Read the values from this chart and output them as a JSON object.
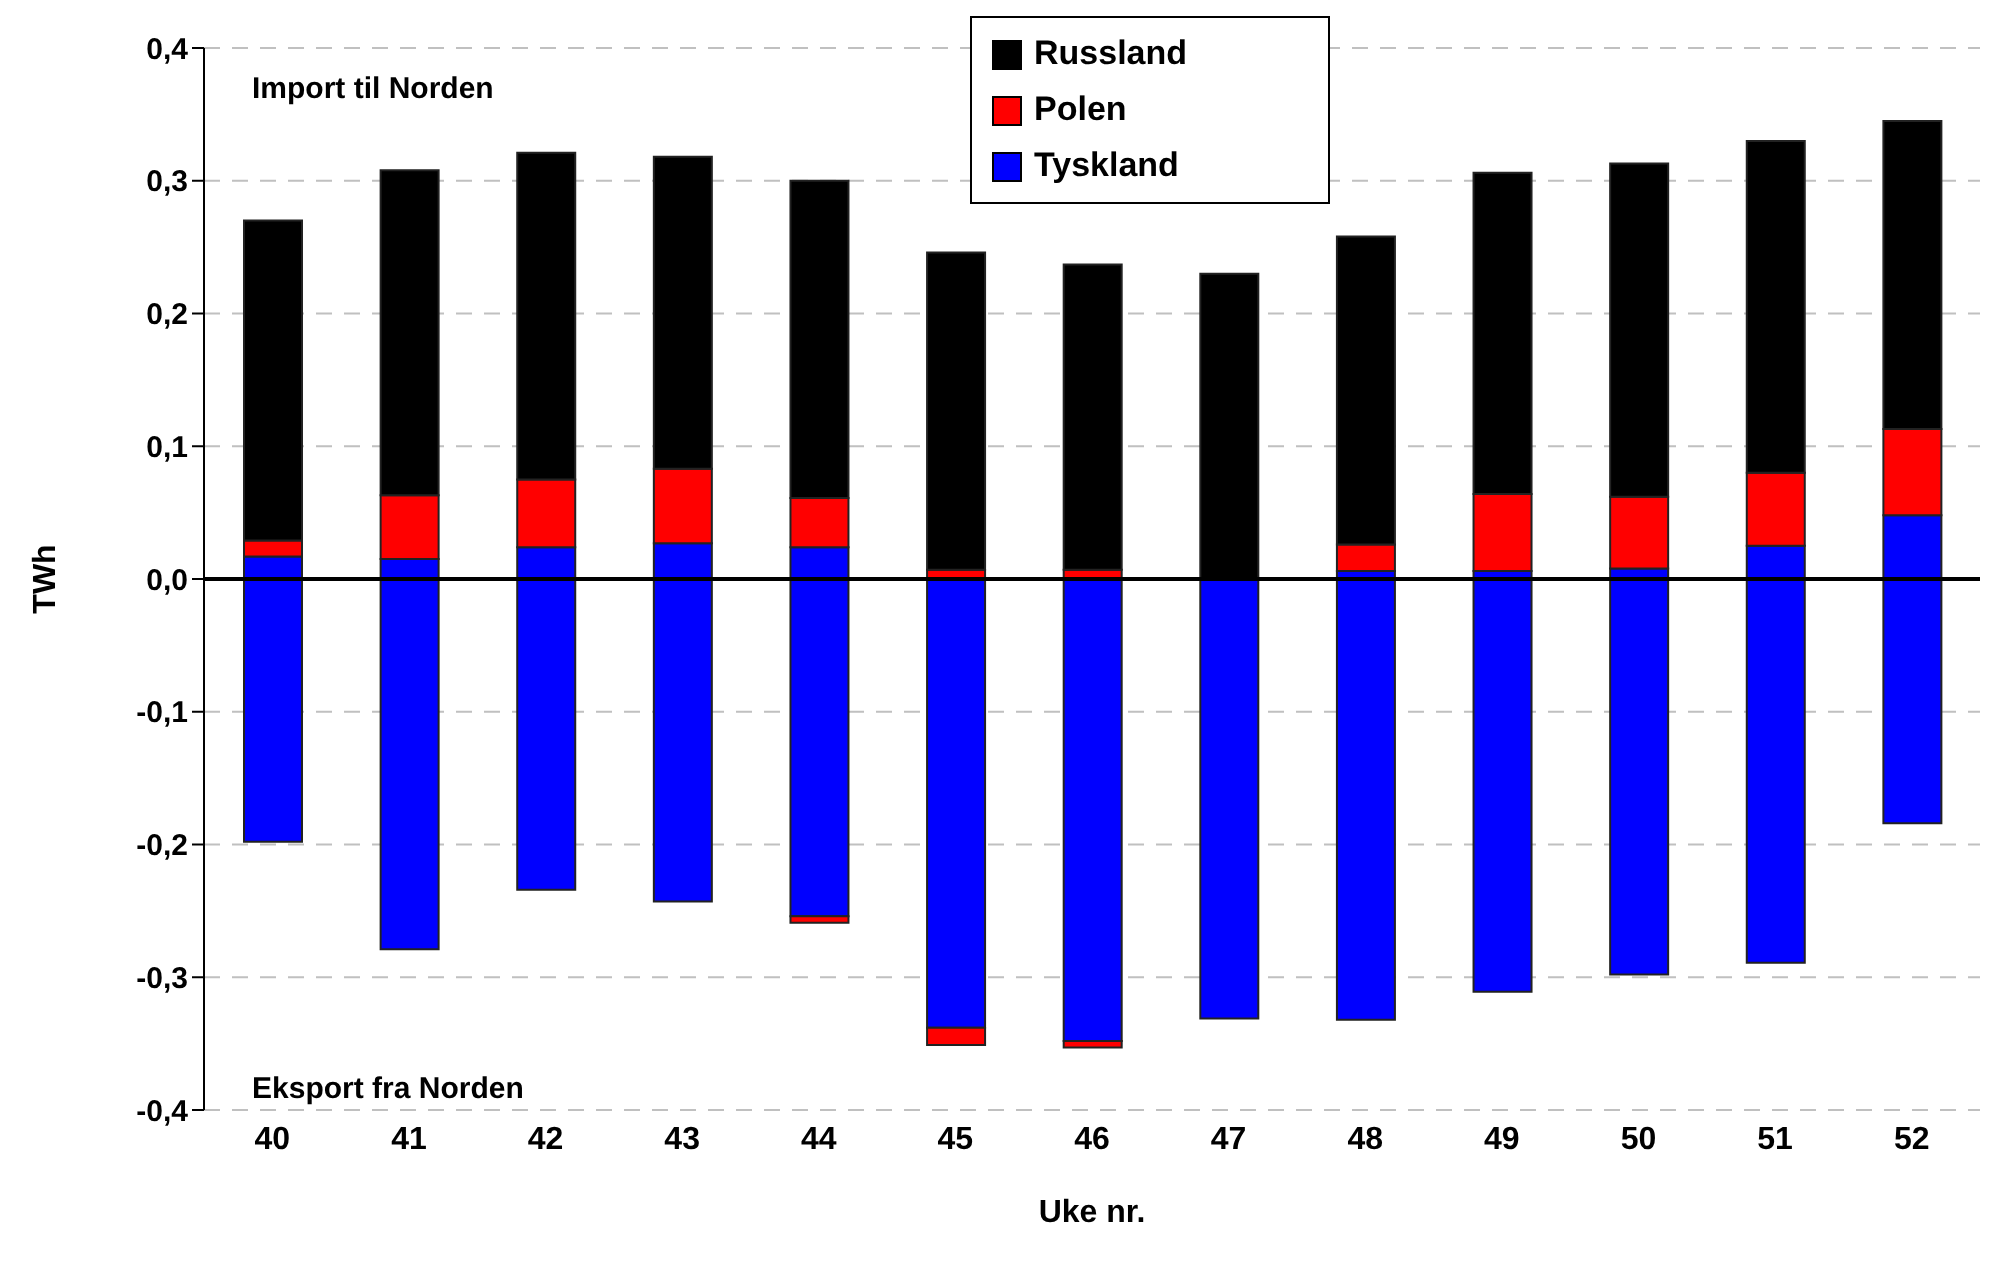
{
  "chart_data": {
    "type": "bar",
    "stacked": true,
    "xlabel": "Uke nr.",
    "ylabel": "TWh",
    "categories": [
      "40",
      "41",
      "42",
      "43",
      "44",
      "45",
      "46",
      "47",
      "48",
      "49",
      "50",
      "51",
      "52"
    ],
    "series": [
      {
        "name": "Tyskland",
        "color": "#0000ff",
        "values": [
          0.017,
          0.015,
          0.024,
          0.027,
          0.024,
          null,
          null,
          0,
          0.006,
          0.006,
          0.008,
          0.025,
          0.048
        ]
      },
      {
        "name": "Polen",
        "color": "#ff0000",
        "values": [
          0.012,
          0.048,
          0.051,
          0.056,
          0.037,
          0.007,
          0.007,
          0,
          0.02,
          0.058,
          0.054,
          0.055,
          0.065
        ]
      },
      {
        "name": "Russland",
        "color": "#000000",
        "values": [
          0.241,
          0.245,
          0.246,
          0.235,
          0.239,
          0.239,
          0.23,
          0.23,
          0.232,
          0.242,
          0.251,
          0.25,
          0.232
        ]
      },
      {
        "color": "#0000ff",
        "values": [
          -0.198,
          -0.279,
          -0.234,
          -0.243,
          -0.254,
          -0.338,
          -0.348,
          -0.331,
          -0.332,
          -0.311,
          -0.298,
          -0.289,
          -0.184
        ]
      },
      {
        "color": "#ff0000",
        "values": [
          0,
          0,
          0,
          0,
          -0.005,
          -0.013,
          -0.005,
          0,
          0,
          0,
          0,
          0,
          0
        ]
      }
    ],
    "ylim": [
      -0.4,
      0.4
    ],
    "yticks": [
      {
        "value": -0.4,
        "label": "-0,4"
      },
      {
        "value": -0.3,
        "label": "-0,3"
      },
      {
        "value": -0.2,
        "label": "-0,2"
      },
      {
        "value": -0.1,
        "label": "-0,1"
      },
      {
        "value": 0,
        "label": "0,0"
      },
      {
        "value": 0.1,
        "label": "0,1"
      },
      {
        "value": 0.2,
        "label": "0,2"
      },
      {
        "value": 0.3,
        "label": "0,3"
      },
      {
        "value": 0.4,
        "label": "0,4"
      }
    ],
    "ref_lines": [
      {
        "axis": "y",
        "value": 0,
        "color": "#000000"
      }
    ],
    "annotations": [
      "Import til Norden",
      "Eksport fra Norden"
    ],
    "grid": "y",
    "legend": "top"
  }
}
